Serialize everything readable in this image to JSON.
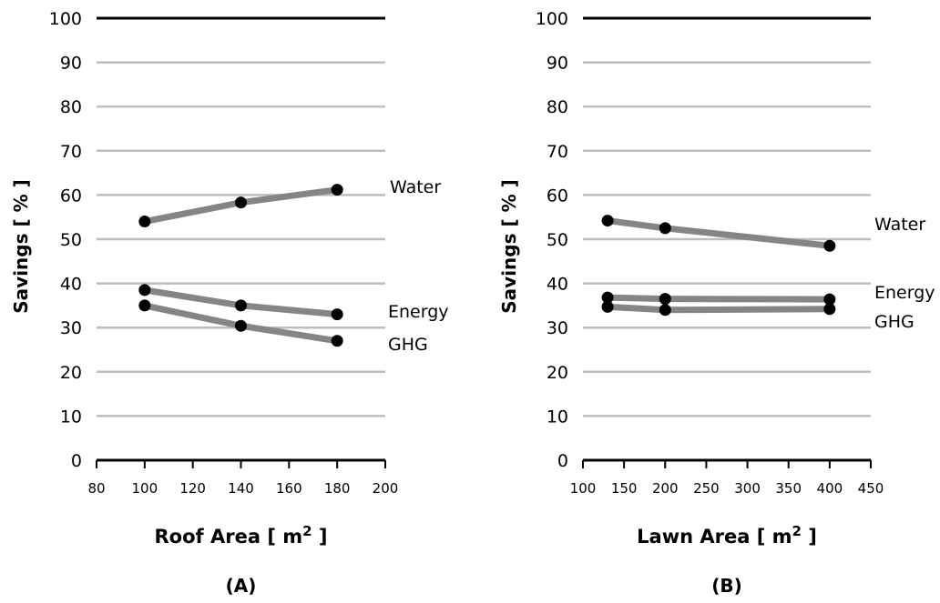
{
  "chart_data": [
    {
      "type": "line",
      "panel_label": "(A)",
      "xlabel": "Roof Area [ m",
      "xlabel_sup": "2",
      "xlabel_end": " ]",
      "ylabel": "Savings [ % ]",
      "xlim": [
        80,
        200
      ],
      "ylim": [
        0,
        100
      ],
      "xticks": [
        80,
        100,
        120,
        140,
        160,
        180,
        200
      ],
      "yticks": [
        0,
        10,
        20,
        30,
        40,
        50,
        60,
        70,
        80,
        90,
        100
      ],
      "grid": "horizontal",
      "x": [
        100,
        140,
        180
      ],
      "series": [
        {
          "name": "Water",
          "values": [
            54,
            58.3,
            61.2
          ]
        },
        {
          "name": "Energy",
          "values": [
            38.5,
            35,
            33
          ]
        },
        {
          "name": "GHG",
          "values": [
            35,
            30.4,
            27
          ]
        }
      ],
      "colors": {
        "line": "#858585",
        "marker": "#000000",
        "grid": "#bdbdbd",
        "axis": "#000000"
      }
    },
    {
      "type": "line",
      "panel_label": "(B)",
      "xlabel": "Lawn Area [ m",
      "xlabel_sup": "2",
      "xlabel_end": " ]",
      "ylabel": "Savings [ % ]",
      "xlim": [
        100,
        450
      ],
      "ylim": [
        0,
        100
      ],
      "xticks": [
        100,
        150,
        200,
        250,
        300,
        350,
        400,
        450
      ],
      "yticks": [
        0,
        10,
        20,
        30,
        40,
        50,
        60,
        70,
        80,
        90,
        100
      ],
      "grid": "horizontal",
      "x": [
        130,
        200,
        400
      ],
      "series": [
        {
          "name": "Water",
          "values": [
            54.2,
            52.5,
            48.5
          ]
        },
        {
          "name": "Energy",
          "values": [
            36.8,
            36.5,
            36.4
          ]
        },
        {
          "name": "GHG",
          "values": [
            34.7,
            34,
            34.2
          ]
        }
      ],
      "colors": {
        "line": "#858585",
        "marker": "#000000",
        "grid": "#bdbdbd",
        "axis": "#000000"
      }
    }
  ]
}
